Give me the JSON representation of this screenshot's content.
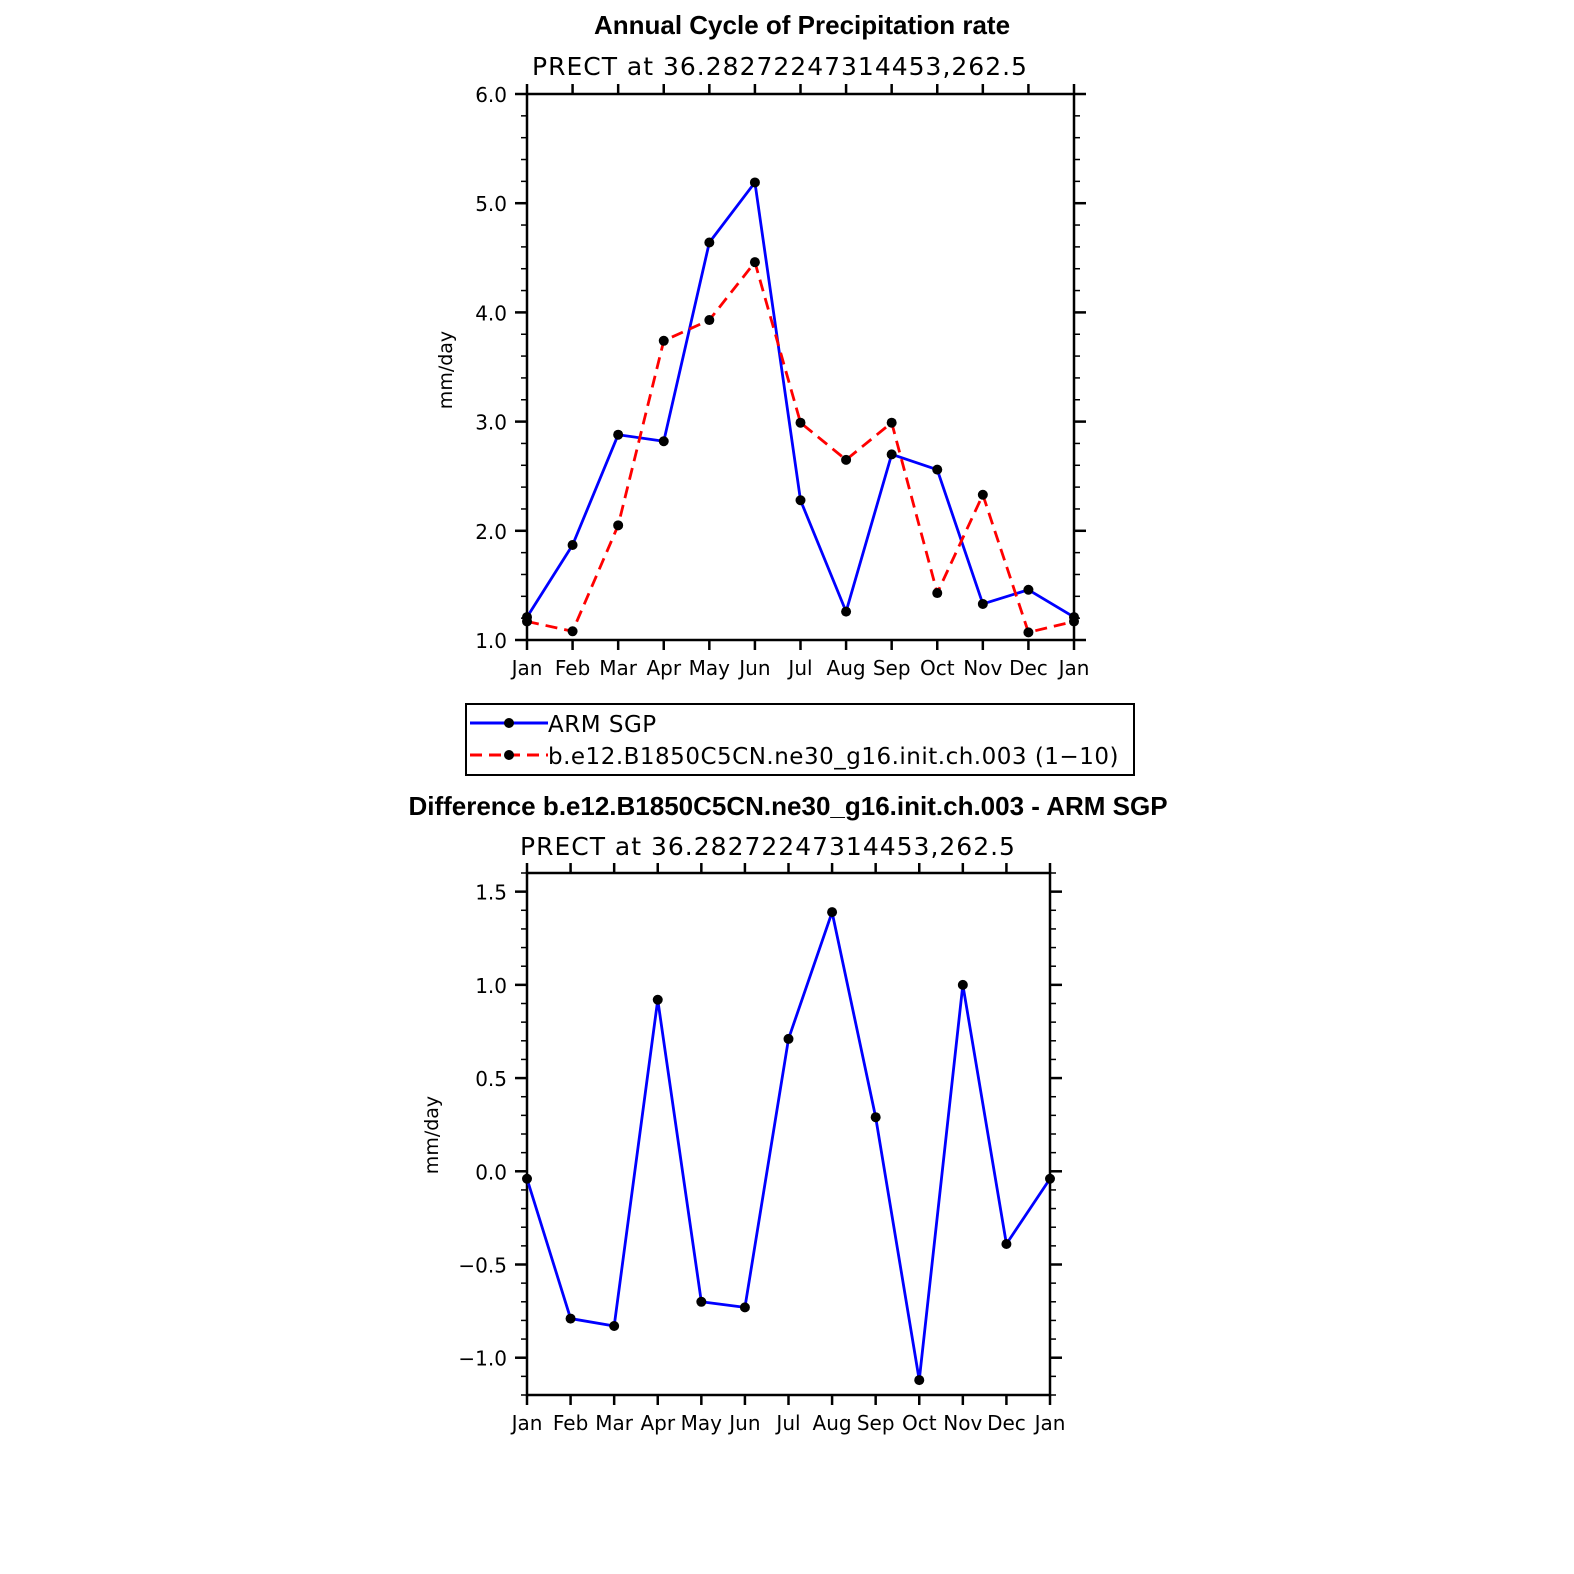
{
  "chart_data": [
    {
      "type": "line",
      "title": "Annual Cycle of Precipitation rate",
      "subtitle": "PRECT at 36.28272247314453,262.5",
      "xlabel": "",
      "ylabel": "mm/day",
      "ylim": [
        1.0,
        6.0
      ],
      "yticks": [
        "1.0",
        "2.0",
        "3.0",
        "4.0",
        "5.0",
        "6.0"
      ],
      "categories": [
        "Jan",
        "Feb",
        "Mar",
        "Apr",
        "May",
        "Jun",
        "Jul",
        "Aug",
        "Sep",
        "Oct",
        "Nov",
        "Dec",
        "Jan"
      ],
      "grid": false,
      "legend_position": "bottom",
      "series": [
        {
          "name": "ARM SGP",
          "color": "#0000ff",
          "dash": "solid",
          "values": [
            1.21,
            1.87,
            2.88,
            2.82,
            4.64,
            5.19,
            2.28,
            1.26,
            2.7,
            2.56,
            1.33,
            1.46,
            1.21
          ]
        },
        {
          "name": "b.e12.B1850C5CN.ne30_g16.init.ch.003 (1−10)",
          "color": "#ff0000",
          "dash": "dashed",
          "values": [
            1.17,
            1.08,
            2.05,
            3.74,
            3.93,
            4.46,
            2.99,
            2.65,
            2.99,
            1.43,
            2.33,
            1.07,
            1.17
          ]
        }
      ]
    },
    {
      "type": "line",
      "title": "Difference b.e12.B1850C5CN.ne30_g16.init.ch.003 - ARM SGP",
      "subtitle": "PRECT at 36.28272247314453,262.5",
      "xlabel": "",
      "ylabel": "mm/day",
      "ylim": [
        -1.2,
        1.6
      ],
      "yticks": [
        "−1.0",
        "−0.5",
        "0.0",
        "0.5",
        "1.0",
        "1.5"
      ],
      "categories": [
        "Jan",
        "Feb",
        "Mar",
        "Apr",
        "May",
        "Jun",
        "Jul",
        "Aug",
        "Sep",
        "Oct",
        "Nov",
        "Dec",
        "Jan"
      ],
      "grid": false,
      "series": [
        {
          "color": "#0000ff",
          "dash": "solid",
          "values": [
            -0.04,
            -0.79,
            -0.83,
            0.92,
            -0.7,
            -0.73,
            0.71,
            1.39,
            0.29,
            -1.12,
            1.0,
            -0.39,
            -0.04
          ]
        }
      ]
    }
  ]
}
